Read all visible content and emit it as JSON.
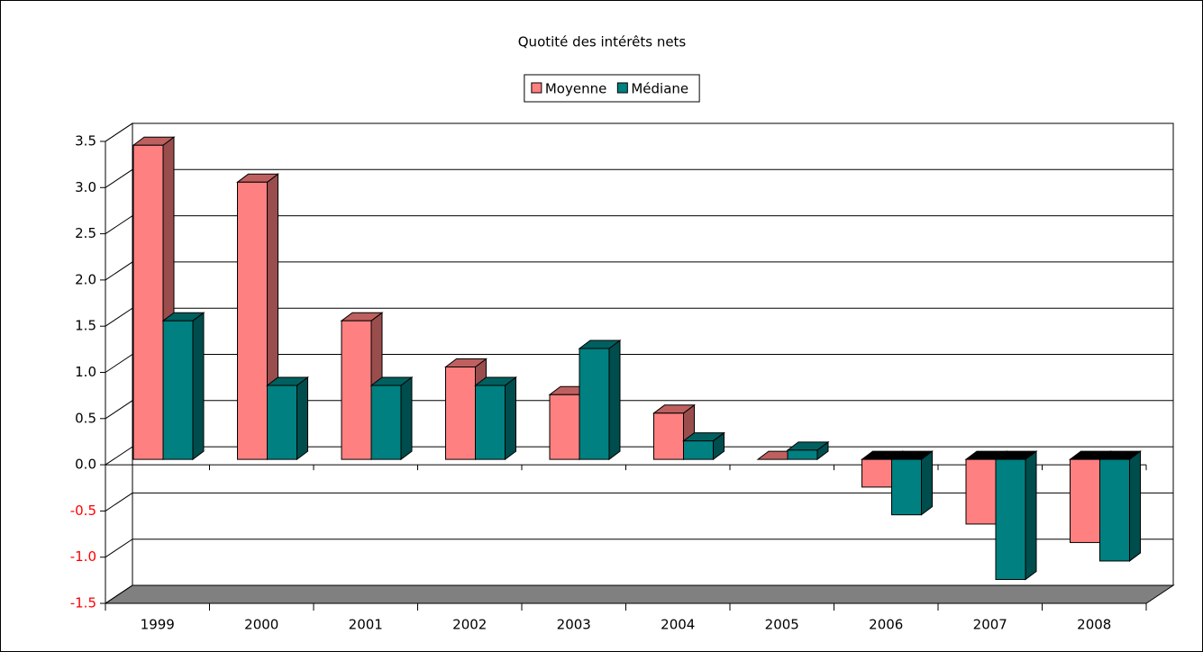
{
  "chart_data": {
    "type": "bar3d",
    "title": "Quotité des intérêts nets",
    "categories": [
      "1999",
      "2000",
      "2001",
      "2002",
      "2003",
      "2004",
      "2005",
      "2006",
      "2007",
      "2008"
    ],
    "series": [
      {
        "name": "Moyenne",
        "color": "#ff8080",
        "values": [
          3.4,
          3.0,
          1.5,
          1.0,
          0.7,
          0.5,
          0.0,
          -0.3,
          -0.7,
          -0.9
        ]
      },
      {
        "name": "Médiane",
        "color": "#008080",
        "values": [
          1.5,
          0.8,
          0.8,
          0.8,
          1.2,
          0.2,
          0.1,
          -0.6,
          -1.3,
          -1.1
        ]
      }
    ],
    "ylim": [
      -1.5,
      3.5
    ],
    "yticks": [
      {
        "value": -1.5,
        "label": "-1.5"
      },
      {
        "value": -1,
        "label": "-1.0"
      },
      -0.5,
      {
        "value": 0,
        "label": "0.0"
      },
      0.5,
      {
        "value": 1,
        "label": "1.0"
      },
      1.5,
      {
        "value": 2,
        "label": "2.0"
      },
      2.5,
      {
        "value": 3,
        "label": "3.0"
      },
      3.5
    ],
    "grid": true,
    "negative_tick_color": "#ff0000",
    "legend": "top"
  }
}
